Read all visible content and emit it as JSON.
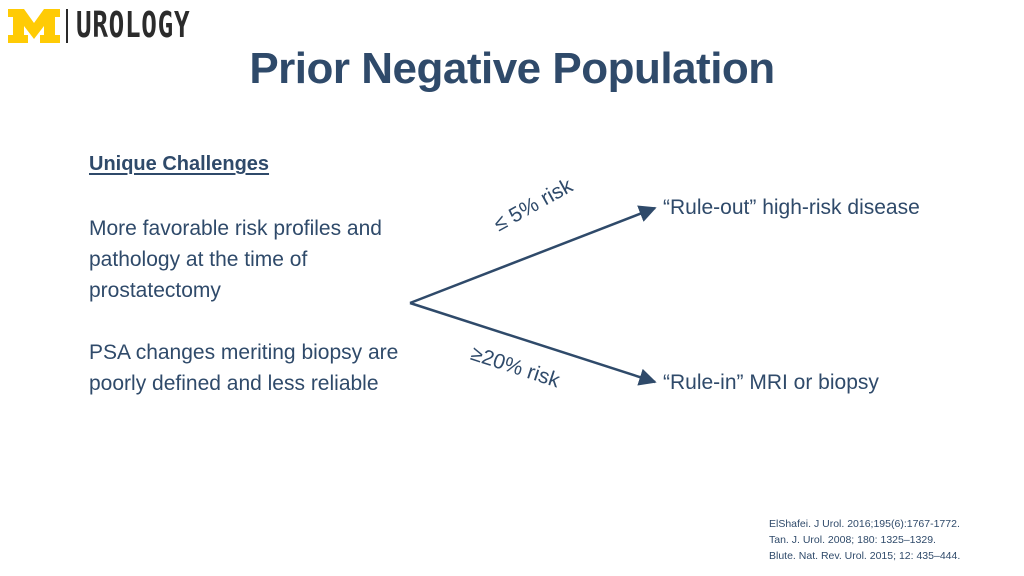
{
  "logo": {
    "text": "UROLOGY",
    "block_m_color": "#FFCB05"
  },
  "title": "Prior Negative Population",
  "left": {
    "heading": "Unique Challenges",
    "p1": "More favorable risk profiles and pathology at the time of prostatectomy",
    "p2": "PSA changes meriting biopsy are poorly defined and less reliable"
  },
  "diagram": {
    "top_risk": "≤ 5% risk",
    "top_outcome": "“Rule-out” high-risk disease",
    "bottom_risk": "≥20% risk",
    "bottom_outcome": "“Rule-in” MRI or biopsy",
    "line_color": "#2f4a6a"
  },
  "references": [
    "ElShafei. J Urol. 2016;195(6):1767-1772.",
    "Tan. J. Urol. 2008; 180: 1325–1329.",
    "Blute. Nat. Rev. Urol. 2015; 12: 435–444."
  ]
}
